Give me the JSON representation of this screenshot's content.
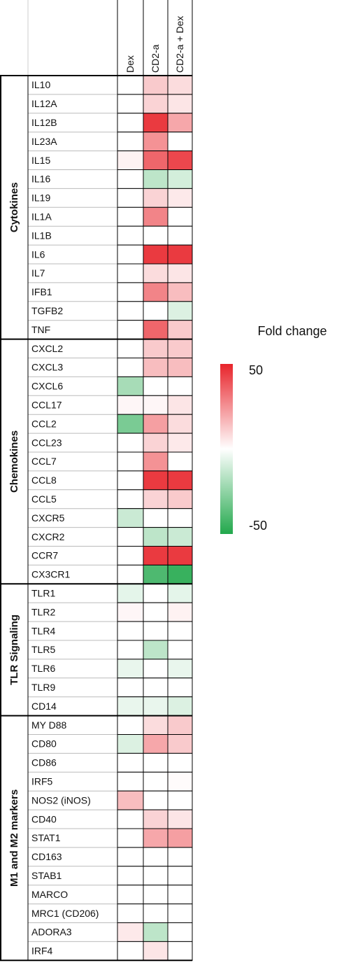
{
  "chart_data": {
    "type": "heatmap",
    "columns": [
      "Dex",
      "CD2-a",
      "CD2-a + Dex"
    ],
    "groups": [
      {
        "name": "Cytokines",
        "genes": [
          "IL10",
          "IL12A",
          "IL12B",
          "IL23A",
          "IL15",
          "IL16",
          "IL19",
          "IL1A",
          "IL1B",
          "IL6",
          "IL7",
          "IFB1",
          "TGFB2",
          "TNF"
        ],
        "values": [
          [
            0,
            12,
            8
          ],
          [
            0,
            10,
            6
          ],
          [
            0,
            45,
            20
          ],
          [
            0,
            25,
            0
          ],
          [
            3,
            35,
            42
          ],
          [
            0,
            -15,
            -10
          ],
          [
            0,
            10,
            5
          ],
          [
            0,
            28,
            0
          ],
          [
            0,
            0,
            0
          ],
          [
            0,
            45,
            45
          ],
          [
            0,
            8,
            6
          ],
          [
            0,
            28,
            15
          ],
          [
            0,
            0,
            -8
          ],
          [
            0,
            35,
            12
          ]
        ]
      },
      {
        "name": "Chemokines",
        "genes": [
          "CXCL2",
          "CXCL3",
          "CXCL6",
          "CCL17",
          "CCL2",
          "CCL23",
          "CCL7",
          "CCL8",
          "CCL5",
          "CXCR5",
          "CXCR2",
          "CCR7",
          "CX3CR1"
        ],
        "values": [
          [
            0,
            12,
            12
          ],
          [
            0,
            15,
            15
          ],
          [
            -20,
            0,
            0
          ],
          [
            2,
            2,
            6
          ],
          [
            -30,
            22,
            8
          ],
          [
            0,
            10,
            5
          ],
          [
            0,
            25,
            0
          ],
          [
            0,
            45,
            45
          ],
          [
            0,
            10,
            12
          ],
          [
            -12,
            0,
            0
          ],
          [
            0,
            -15,
            -12
          ],
          [
            0,
            45,
            45
          ],
          [
            0,
            -40,
            -45
          ]
        ]
      },
      {
        "name": "TLR Signaling",
        "genes": [
          "TLR1",
          "TLR2",
          "TLR4",
          "TLR5",
          "TLR6",
          "TLR9",
          "CD14"
        ],
        "values": [
          [
            -6,
            0,
            -6
          ],
          [
            2,
            0,
            3
          ],
          [
            0,
            0,
            0
          ],
          [
            0,
            -15,
            0
          ],
          [
            -5,
            0,
            -5
          ],
          [
            0,
            0,
            0
          ],
          [
            -5,
            -5,
            -8
          ]
        ]
      },
      {
        "name": "M1 and M2 markers",
        "genes": [
          "MY D88",
          "CD80",
          "CD86",
          "IRF5",
          "NOS2 (iNOS)",
          "CD40",
          "STAT1",
          "CD163",
          "STAB1",
          "MARCO",
          "MRC1 (CD206)",
          "ADORA3",
          "IRF4"
        ],
        "values": [
          [
            0,
            8,
            12
          ],
          [
            -8,
            20,
            12
          ],
          [
            0,
            0,
            0
          ],
          [
            0,
            0,
            1
          ],
          [
            15,
            0,
            0
          ],
          [
            0,
            10,
            6
          ],
          [
            0,
            20,
            22
          ],
          [
            0,
            0,
            0
          ],
          [
            0,
            0,
            0
          ],
          [
            0,
            0,
            0
          ],
          [
            0,
            0,
            0
          ],
          [
            5,
            -15,
            0
          ],
          [
            0,
            6,
            0
          ]
        ]
      }
    ],
    "colorbar_title": "Fold change",
    "zlim": [
      -50,
      50
    ],
    "zticks": [
      50,
      -50
    ],
    "colors": {
      "low": "#22a84c",
      "mid": "#ffffff",
      "high": "#e8242b"
    }
  }
}
